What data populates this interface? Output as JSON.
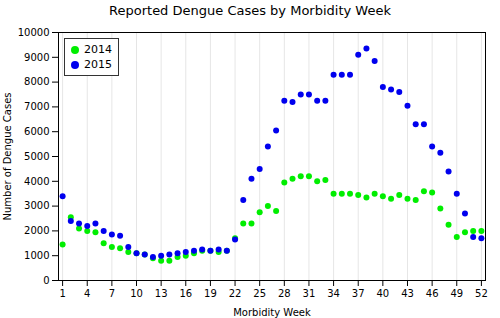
{
  "chart_data": {
    "type": "scatter",
    "title": "Reported Dengue Cases by Morbidity Week",
    "xlabel": "Morbidity Week",
    "ylabel": "Number of Dengue Cases",
    "x": [
      1,
      2,
      3,
      4,
      5,
      6,
      7,
      8,
      9,
      10,
      11,
      12,
      13,
      14,
      15,
      16,
      17,
      18,
      19,
      20,
      21,
      22,
      23,
      24,
      25,
      26,
      27,
      28,
      29,
      30,
      31,
      32,
      33,
      34,
      35,
      36,
      37,
      38,
      39,
      40,
      41,
      42,
      43,
      44,
      45,
      46,
      47,
      48,
      49,
      50,
      51,
      52
    ],
    "series": [
      {
        "name": "2014",
        "color": "#00ee00",
        "values": [
          1450,
          2550,
          2100,
          2000,
          1950,
          1500,
          1350,
          1300,
          1150,
          1100,
          1050,
          900,
          800,
          800,
          950,
          1000,
          1100,
          1200,
          1200,
          1150,
          1200,
          1700,
          2300,
          2300,
          2750,
          3000,
          2800,
          3950,
          4100,
          4200,
          4200,
          4000,
          4050,
          3500,
          3500,
          3500,
          3450,
          3350,
          3500,
          3400,
          3300,
          3450,
          3300,
          3250,
          3600,
          3550,
          2900,
          2250,
          1750,
          1950,
          2000,
          2000
        ]
      },
      {
        "name": "2015",
        "color": "#0000ee",
        "values": [
          3400,
          2400,
          2300,
          2200,
          2300,
          2000,
          1850,
          1800,
          1350,
          1100,
          1050,
          950,
          1000,
          1050,
          1100,
          1150,
          1200,
          1250,
          1200,
          1250,
          1200,
          1650,
          3250,
          4100,
          4500,
          5400,
          6050,
          7250,
          7200,
          7500,
          7500,
          7250,
          7250,
          8300,
          8300,
          8300,
          9100,
          9350,
          8850,
          7800,
          7700,
          7600,
          7050,
          6300,
          6300,
          5400,
          5150,
          4400,
          3500,
          2700,
          1750,
          1700
        ]
      }
    ],
    "xlim": [
      0.5,
      52.5
    ],
    "xticks": [
      1,
      4,
      7,
      10,
      13,
      16,
      19,
      22,
      25,
      28,
      31,
      34,
      37,
      40,
      43,
      46,
      49,
      52
    ],
    "ylim": [
      0,
      10000
    ],
    "yticks": [
      0,
      1000,
      2000,
      3000,
      4000,
      5000,
      6000,
      7000,
      8000,
      9000,
      10000
    ],
    "grid": "x",
    "legend": "upper left"
  }
}
